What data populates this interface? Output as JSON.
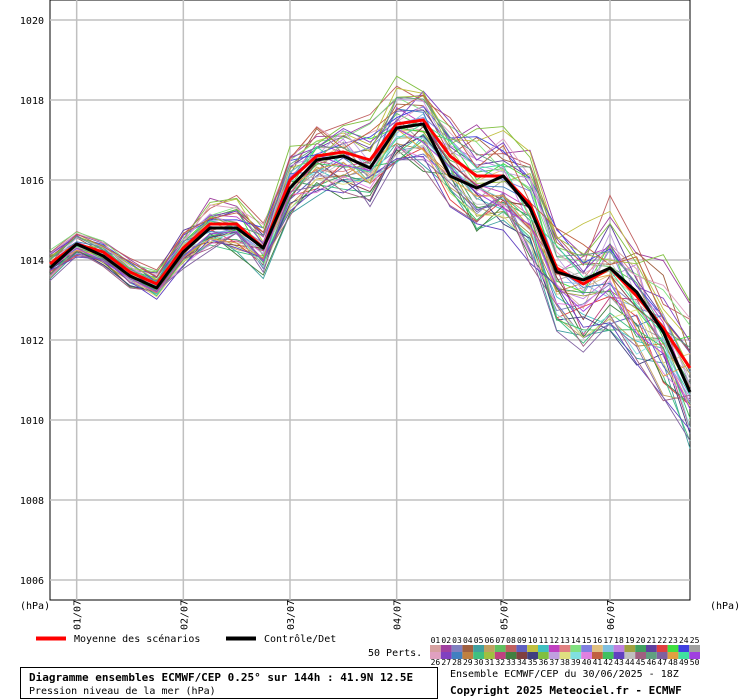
{
  "chart_data": {
    "type": "line",
    "y_axis_label": "(hPa)",
    "ylim": [
      1005.5,
      1020.5
    ],
    "y_ticks": [
      1006,
      1008,
      1010,
      1012,
      1014,
      1016,
      1018,
      1020
    ],
    "x_range_hours": [
      0,
      144
    ],
    "x_ticks": [
      {
        "label": "01/07",
        "hour": 6
      },
      {
        "label": "02/07",
        "hour": 30
      },
      {
        "label": "03/07",
        "hour": 54
      },
      {
        "label": "04/07",
        "hour": 78
      },
      {
        "label": "05/07",
        "hour": 102
      },
      {
        "label": "06/07",
        "hour": 126
      }
    ],
    "x_hours": [
      0,
      6,
      12,
      18,
      24,
      30,
      36,
      42,
      48,
      54,
      60,
      66,
      72,
      78,
      84,
      90,
      96,
      102,
      108,
      114,
      120,
      126,
      132,
      138,
      144
    ],
    "mean": [
      1013.9,
      1014.4,
      1014.2,
      1013.7,
      1013.4,
      1014.3,
      1014.9,
      1014.9,
      1014.3,
      1016.0,
      1016.6,
      1016.7,
      1016.5,
      1017.4,
      1017.5,
      1016.6,
      1016.1,
      1016.1,
      1015.4,
      1013.8,
      1013.4,
      1013.8,
      1013.1,
      1012.3,
      1011.3
    ],
    "control": [
      1013.8,
      1014.4,
      1014.1,
      1013.6,
      1013.3,
      1014.2,
      1014.8,
      1014.8,
      1014.3,
      1015.8,
      1016.5,
      1016.6,
      1016.3,
      1017.3,
      1017.4,
      1016.1,
      1015.8,
      1016.1,
      1015.3,
      1013.7,
      1013.5,
      1013.8,
      1013.2,
      1012.2,
      1010.7
    ],
    "perturbation_offset_base": [
      0.0,
      0.0,
      0.0,
      0.0,
      0.0,
      0.1,
      0.2,
      0.3,
      0.3,
      0.4,
      0.5,
      0.6,
      0.6,
      0.7,
      0.7,
      0.7,
      0.8,
      0.8,
      0.9,
      1.0,
      1.1,
      1.2,
      1.3,
      1.4,
      1.5
    ],
    "legend": {
      "mean_label": "Moyenne des scénarios",
      "control_label": "Contrôle/Det",
      "mean_color": "#ff0000",
      "control_color": "#000000",
      "perts_label": "50 Perts.",
      "pert_numbers_row1": [
        "01",
        "02",
        "03",
        "04",
        "05",
        "06",
        "07",
        "08",
        "09",
        "10",
        "11",
        "12",
        "13",
        "14",
        "15",
        "16",
        "17",
        "18",
        "19",
        "20",
        "21",
        "22",
        "23",
        "24",
        "25"
      ],
      "pert_numbers_row2": [
        "26",
        "27",
        "28",
        "29",
        "30",
        "31",
        "32",
        "33",
        "34",
        "35",
        "36",
        "37",
        "38",
        "39",
        "40",
        "41",
        "42",
        "43",
        "44",
        "45",
        "46",
        "47",
        "48",
        "49",
        "50"
      ],
      "pert_colors_row1": [
        "#d6a0a0",
        "#a040a0",
        "#8080c0",
        "#a06040",
        "#40a0a0",
        "#c0a060",
        "#60c060",
        "#c06060",
        "#6060c0",
        "#c0c040",
        "#40c0c0",
        "#c040c0",
        "#e08080",
        "#80e080",
        "#8080e0",
        "#e0c080",
        "#80c0e0",
        "#c080e0",
        "#a0a040",
        "#40a060",
        "#6040a0",
        "#e04040",
        "#40e040",
        "#4040e0",
        "#a0a0a0"
      ],
      "pert_colors_row2": [
        "#e0a0c0",
        "#8040c0",
        "#4080c0",
        "#c08040",
        "#40c080",
        "#a0c040",
        "#c04080",
        "#408040",
        "#804040",
        "#404080",
        "#80c040",
        "#c0a0e0",
        "#e0e080",
        "#80e0e0",
        "#e080e0",
        "#c06040",
        "#40c060",
        "#6040c0",
        "#c0c0c0",
        "#a06080",
        "#60a080",
        "#8060a0",
        "#e0a040",
        "#40e0a0",
        "#a040e0"
      ]
    },
    "title_line1": "Diagramme ensembles ECMWF/CEP 0.25° sur 144h : 41.9N 12.5E",
    "title_line2": "Pression niveau de la mer (hPa)",
    "run_info": "Ensemble ECMWF/CEP du 30/06/2025 - 18Z",
    "copyright": "Copyright 2025 Meteociel.fr - ECMWF"
  }
}
